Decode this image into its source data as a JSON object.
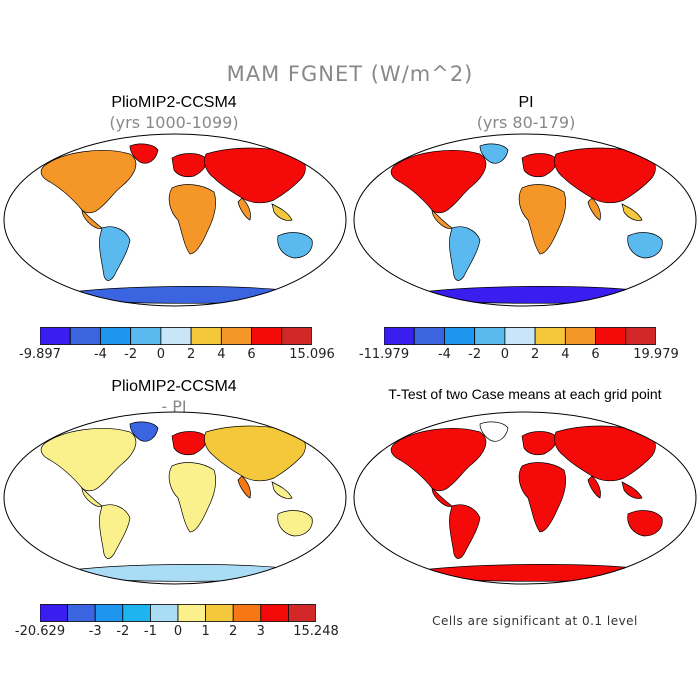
{
  "title": "MAM FGNET (W/m^2)",
  "panels": [
    {
      "title": "PlioMIP2-CCSM4",
      "subtitle": "(yrs 1000-1099)",
      "kind": "case1"
    },
    {
      "title": "PI",
      "subtitle": "(yrs 80-179)",
      "kind": "case2"
    },
    {
      "title": "PlioMIP2-CCSM4",
      "subtitle": "- PI",
      "kind": "diff"
    },
    {
      "title": "T-Test of two Case means at each grid point",
      "subtitle": "",
      "kind": "ttest"
    }
  ],
  "colorbars": [
    {
      "name": "case1",
      "labels": [
        "-9.897",
        "-4",
        "-2",
        "0",
        "2",
        "4",
        "6",
        "15.096"
      ],
      "colors": [
        "#3a1ef0",
        "#3a64e0",
        "#1e96f0",
        "#5ab9ee",
        "#c8e6f8",
        "#f5c83c",
        "#f59628",
        "#f50a0a",
        "#d22828"
      ]
    },
    {
      "name": "case2",
      "labels": [
        "-11.979",
        "-4",
        "-2",
        "0",
        "2",
        "4",
        "6",
        "19.979"
      ],
      "colors": [
        "#3a1ef0",
        "#3a64e0",
        "#1e96f0",
        "#5ab9ee",
        "#c8e6f8",
        "#f5c83c",
        "#f59628",
        "#f50a0a",
        "#d22828"
      ]
    },
    {
      "name": "diff",
      "labels": [
        "-20.629",
        "-3",
        "-2",
        "-1",
        "0",
        "1",
        "2",
        "3",
        "15.248"
      ],
      "colors": [
        "#3a1ef0",
        "#3a64e0",
        "#1e96f0",
        "#1eb4f0",
        "#aadcf5",
        "#faf08c",
        "#f5c83c",
        "#f57814",
        "#f50a0a",
        "#d22828"
      ]
    }
  ],
  "note": "Cells are significant at 0.1 level"
}
